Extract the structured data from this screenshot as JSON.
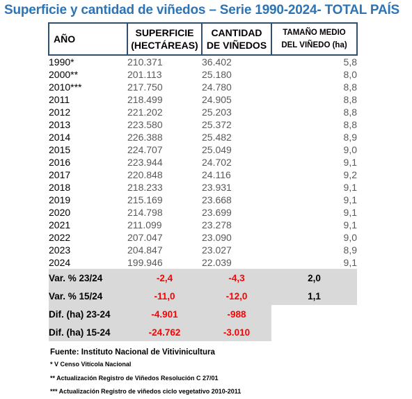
{
  "title": "Superficie y cantidad de viñedos – Serie 1990-2024- TOTAL PAÍS",
  "table": {
    "headers": {
      "year": "AÑO",
      "surface_line1": "SUPERFICIE",
      "surface_line2": "(HECTÁREAS)",
      "count_line1": "CANTIDAD",
      "count_line2": "DE VIÑEDOS",
      "avg_line1": "TAMAÑO MEDIO",
      "avg_line2": "DEL VIÑEDO (ha)"
    },
    "rows": [
      {
        "year": "1990*",
        "surface": "210.371",
        "count": "36.402",
        "avg": "5,8"
      },
      {
        "year": "2000**",
        "surface": "201.113",
        "count": "25.180",
        "avg": "8,0"
      },
      {
        "year": "2010***",
        "surface": "217.750",
        "count": "24.780",
        "avg": "8,8"
      },
      {
        "year": "2011",
        "surface": "218.499",
        "count": "24.905",
        "avg": "8,8"
      },
      {
        "year": "2012",
        "surface": "221.202",
        "count": "25.203",
        "avg": "8,8"
      },
      {
        "year": "2013",
        "surface": "223.580",
        "count": "25.372",
        "avg": "8,8"
      },
      {
        "year": "2014",
        "surface": "226.388",
        "count": "25.482",
        "avg": "8,9"
      },
      {
        "year": "2015",
        "surface": "224.707",
        "count": "25.049",
        "avg": "9,0"
      },
      {
        "year": "2016",
        "surface": "223.944",
        "count": "24.702",
        "avg": "9,1"
      },
      {
        "year": "2017",
        "surface": "220.848",
        "count": "24.116",
        "avg": "9,2"
      },
      {
        "year": "2018",
        "surface": "218.233",
        "count": "23.931",
        "avg": "9,1"
      },
      {
        "year": "2019",
        "surface": "215.169",
        "count": "23.668",
        "avg": "9,1"
      },
      {
        "year": "2020",
        "surface": "214.798",
        "count": "23.699",
        "avg": "9,1"
      },
      {
        "year": "2021",
        "surface": "211.099",
        "count": "23.278",
        "avg": "9,1"
      },
      {
        "year": "2022",
        "surface": "207.047",
        "count": "23.090",
        "avg": "9,0"
      },
      {
        "year": "2023",
        "surface": "204.847",
        "count": "23.027",
        "avg": "8,9"
      },
      {
        "year": "2024",
        "surface": "199.946",
        "count": "22.039",
        "avg": "9,1"
      }
    ],
    "variations": [
      {
        "label": "Var. % 23/24",
        "surface": "-2,4",
        "count": "-4,3",
        "avg": "2,0"
      },
      {
        "label": "Var. % 15/24",
        "surface": "-11,0",
        "count": "-12,0",
        "avg": "1,1"
      }
    ],
    "differences": [
      {
        "label": "Dif. (ha) 23-24",
        "surface": "-4.901",
        "count": "-988"
      },
      {
        "label": "Dif. (ha) 15-24",
        "surface": "-24.762",
        "count": "-3.010"
      }
    ]
  },
  "footer": {
    "source": "Fuente: Instituto Nacional de Vitivinicultura",
    "notes": [
      "* V Censo Vitícola Nacional",
      "** Actualización Registro de Viñedos Resolución C 27/01",
      "*** Actualización Registro de viñedos ciclo vegetativo 2010-2011"
    ]
  }
}
